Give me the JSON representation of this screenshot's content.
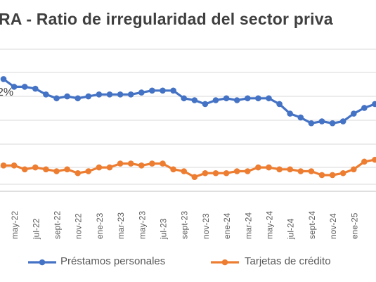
{
  "title": "RA - Ratio de irregularidad del sector priva",
  "chart_data": {
    "type": "line",
    "ytick_visible": "2%",
    "grid": true,
    "legend_position": "bottom",
    "categories": [
      "",
      "may-22",
      "",
      "jul-22",
      "",
      "sept-22",
      "",
      "nov-22",
      "",
      "ene-23",
      "",
      "mar-23",
      "",
      "may-23",
      "",
      "jul-23",
      "",
      "sept-23",
      "",
      "nov-23",
      "",
      "ene-24",
      "",
      "mar-24",
      "",
      "may-24",
      "",
      "jul-24",
      "",
      "sept-24",
      "",
      "nov-24",
      "",
      "ene-25",
      "",
      ""
    ],
    "series": [
      {
        "name": "Préstamos personales",
        "color": "#4472C4",
        "values": [
          6.1,
          5.7,
          5.7,
          5.6,
          5.3,
          5.1,
          5.2,
          5.1,
          5.2,
          5.3,
          5.3,
          5.3,
          5.3,
          5.4,
          5.5,
          5.5,
          5.5,
          5.1,
          5.0,
          4.8,
          5.0,
          5.1,
          5.0,
          5.1,
          5.1,
          5.1,
          4.8,
          4.3,
          4.1,
          3.8,
          3.9,
          3.8,
          3.9,
          4.3,
          4.6,
          4.8
        ]
      },
      {
        "name": "Tarjetas de crédito",
        "color": "#ED7D31",
        "values": [
          1.6,
          1.6,
          1.4,
          1.5,
          1.4,
          1.3,
          1.4,
          1.2,
          1.3,
          1.5,
          1.5,
          1.7,
          1.7,
          1.6,
          1.7,
          1.7,
          1.4,
          1.3,
          1.0,
          1.2,
          1.2,
          1.2,
          1.3,
          1.3,
          1.5,
          1.5,
          1.4,
          1.4,
          1.3,
          1.3,
          1.1,
          1.1,
          1.2,
          1.4,
          1.8,
          1.9
        ]
      }
    ]
  },
  "legend": {
    "items": [
      {
        "label": "Préstamos personales",
        "color": "#4472C4"
      },
      {
        "label": "Tarjetas de crédito",
        "color": "#ED7D31"
      }
    ]
  }
}
